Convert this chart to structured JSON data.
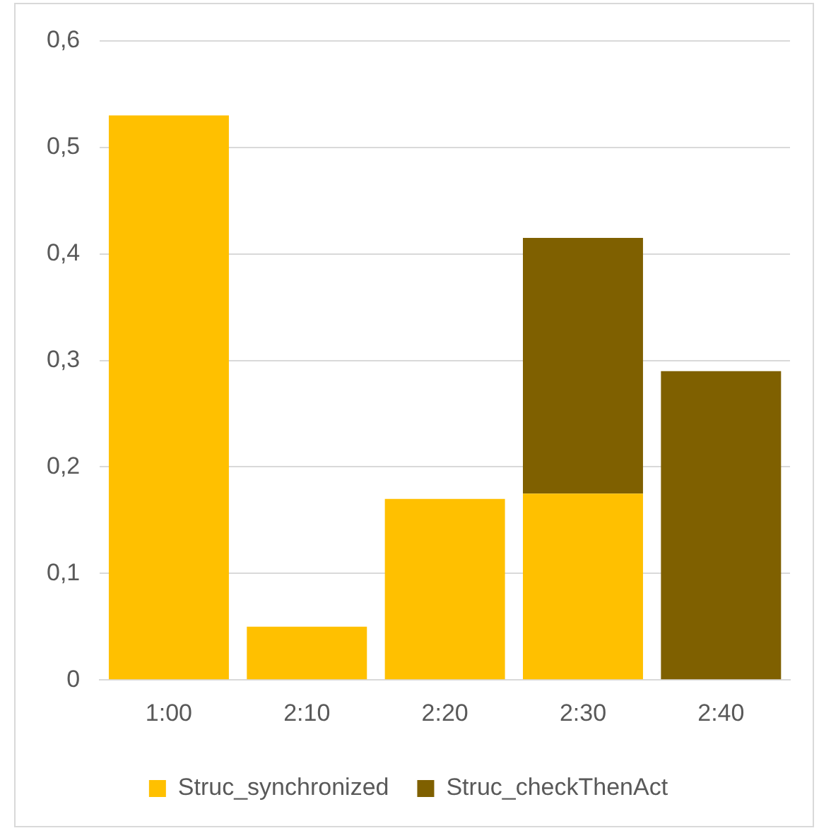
{
  "chart_data": {
    "type": "bar",
    "stacked": true,
    "categories": [
      "1:00",
      "2:10",
      "2:20",
      "2:30",
      "2:40"
    ],
    "series": [
      {
        "name": "Struc_synchronized",
        "color": "#ffc000",
        "values": [
          0.53,
          0.05,
          0.17,
          0.175,
          null
        ]
      },
      {
        "name": "Struc_checkThenAct",
        "color": "#7f6000",
        "values": [
          null,
          null,
          null,
          0.24,
          0.29
        ]
      }
    ],
    "ylim": [
      0,
      0.6
    ],
    "yticks": [
      0,
      {
        "value": 0.1,
        "label": "0,1"
      },
      {
        "value": 0.2,
        "label": "0,2"
      },
      {
        "value": 0.3,
        "label": "0,3"
      },
      {
        "value": 0.4,
        "label": "0,4"
      },
      {
        "value": 0.5,
        "label": "0,5"
      },
      {
        "value": 0.6,
        "label": "0,6"
      }
    ],
    "grid": "y",
    "legend": "bottom"
  }
}
